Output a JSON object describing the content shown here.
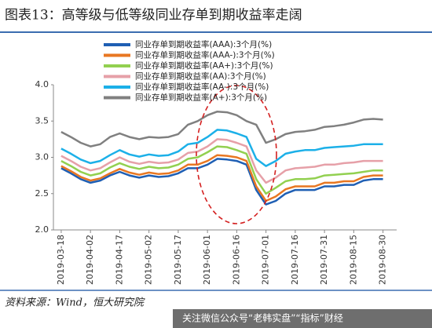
{
  "chart_data": {
    "type": "line",
    "title": "图表13：高等级与低等级同业存单到期收益率走阔",
    "source": "资料来源：Wind，恒大研究院",
    "watermark": "关注微信公众号“老韩实盘”“指标”财经",
    "x": [
      "2019-03-18",
      "2019-03-23",
      "2019-03-28",
      "2019-04-02",
      "2019-04-07",
      "2019-04-12",
      "2019-04-17",
      "2019-04-22",
      "2019-04-27",
      "2019-05-02",
      "2019-05-07",
      "2019-05-12",
      "2019-05-17",
      "2019-05-22",
      "2019-05-27",
      "2019-06-01",
      "2019-06-06",
      "2019-06-11",
      "2019-06-16",
      "2019-06-21",
      "2019-06-26",
      "2019-07-01",
      "2019-07-06",
      "2019-07-11",
      "2019-07-16",
      "2019-07-21",
      "2019-07-26",
      "2019-07-31",
      "2019-08-05",
      "2019-08-10",
      "2019-08-15",
      "2019-08-20",
      "2019-08-25",
      "2019-08-30"
    ],
    "xlim": [
      "2019-03-14",
      "2019-09-06"
    ],
    "xticks": [
      "2019-03-18",
      "2019-04-02",
      "2019-04-17",
      "2019-05-02",
      "2019-05-17",
      "2019-06-01",
      "2019-06-16",
      "2019-07-01",
      "2019-07-16",
      "2019-07-31",
      "2019-08-15",
      "2019-08-30"
    ],
    "ylim": [
      2,
      4
    ],
    "yticks": [
      {
        "value": 2,
        "label": "2.0"
      },
      {
        "value": 2.5,
        "label": "2.5"
      },
      {
        "value": 3,
        "label": "3.0"
      },
      {
        "value": 3.5,
        "label": "3.5"
      },
      {
        "value": 4,
        "label": "4.0"
      }
    ],
    "series": [
      {
        "name": "同业存单到期收益率(AAA):3个月(%)",
        "color": "#1f5fb4",
        "values": [
          2.85,
          2.78,
          2.7,
          2.65,
          2.68,
          2.75,
          2.8,
          2.75,
          2.72,
          2.75,
          2.73,
          2.74,
          2.78,
          2.85,
          2.85,
          2.9,
          2.98,
          2.97,
          2.95,
          2.9,
          2.55,
          2.35,
          2.4,
          2.5,
          2.55,
          2.55,
          2.55,
          2.6,
          2.6,
          2.62,
          2.62,
          2.68,
          2.7,
          2.7
        ]
      },
      {
        "name": "同业存单到期收益率(AAA-):3个月(%)",
        "color": "#e87722",
        "values": [
          2.88,
          2.81,
          2.73,
          2.68,
          2.71,
          2.78,
          2.84,
          2.79,
          2.76,
          2.79,
          2.77,
          2.78,
          2.82,
          2.9,
          2.9,
          2.95,
          3.03,
          3.02,
          3.0,
          2.95,
          2.6,
          2.4,
          2.46,
          2.56,
          2.6,
          2.6,
          2.6,
          2.65,
          2.65,
          2.67,
          2.67,
          2.73,
          2.75,
          2.75
        ]
      },
      {
        "name": "同业存单到期收益率(AA+):3个月(%)",
        "color": "#92d050",
        "values": [
          2.95,
          2.88,
          2.8,
          2.75,
          2.78,
          2.86,
          2.92,
          2.87,
          2.84,
          2.87,
          2.85,
          2.86,
          2.9,
          2.98,
          3.0,
          3.07,
          3.15,
          3.14,
          3.1,
          3.05,
          2.7,
          2.5,
          2.58,
          2.67,
          2.7,
          2.7,
          2.71,
          2.75,
          2.76,
          2.77,
          2.78,
          2.8,
          2.82,
          2.82
        ]
      },
      {
        "name": "同业存单到期收益率(AA):3个月(%)",
        "color": "#e6a0a8",
        "values": [
          3.02,
          2.95,
          2.87,
          2.82,
          2.85,
          2.93,
          3.0,
          2.94,
          2.91,
          2.94,
          2.92,
          2.93,
          2.97,
          3.06,
          3.08,
          3.15,
          3.25,
          3.24,
          3.2,
          3.15,
          2.82,
          2.65,
          2.72,
          2.82,
          2.85,
          2.86,
          2.87,
          2.9,
          2.9,
          2.92,
          2.93,
          2.95,
          2.95,
          2.95
        ]
      },
      {
        "name": "同业存单到期收益率(AA-):3个月(%)",
        "color": "#1cb0e8",
        "values": [
          3.12,
          3.05,
          2.97,
          2.92,
          2.95,
          3.03,
          3.1,
          3.04,
          3.01,
          3.04,
          3.02,
          3.03,
          3.08,
          3.18,
          3.2,
          3.28,
          3.38,
          3.37,
          3.33,
          3.28,
          2.98,
          2.88,
          2.95,
          3.05,
          3.08,
          3.1,
          3.1,
          3.13,
          3.14,
          3.15,
          3.16,
          3.18,
          3.18,
          3.18
        ]
      },
      {
        "name": "同业存单到期收益率(A+):3个月(%)",
        "color": "#808080",
        "values": [
          3.35,
          3.28,
          3.2,
          3.15,
          3.18,
          3.28,
          3.33,
          3.28,
          3.25,
          3.28,
          3.27,
          3.28,
          3.32,
          3.45,
          3.5,
          3.58,
          3.63,
          3.62,
          3.58,
          3.5,
          3.45,
          3.2,
          3.25,
          3.32,
          3.35,
          3.36,
          3.38,
          3.42,
          3.43,
          3.45,
          3.48,
          3.52,
          3.53,
          3.52
        ]
      }
    ]
  }
}
